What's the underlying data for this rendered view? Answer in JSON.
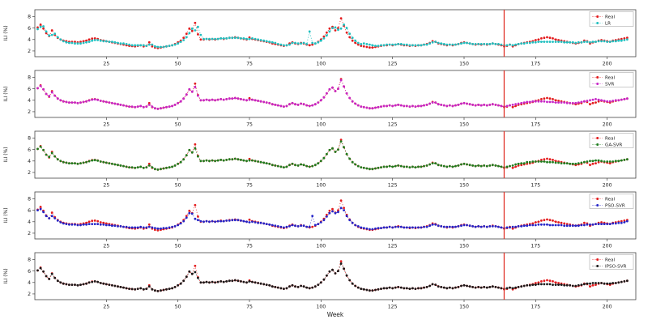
{
  "chart_data": {
    "type": "line",
    "title": "",
    "xlabel": "Week",
    "ylabel": "ILI (%)",
    "x_ticks": [
      25,
      50,
      75,
      100,
      125,
      150,
      175,
      200
    ],
    "y_ticks": [
      2,
      4,
      6,
      8
    ],
    "xlim": [
      0,
      210
    ],
    "ylim": [
      1.0,
      9.2
    ],
    "grid": false,
    "legend_position": "upper right",
    "split_week": 164,
    "marker": "dot",
    "linestyle": "dotted",
    "colors": {
      "Real": "#e31a1c",
      "LR": "#1fbfbf",
      "SVR": "#c625c6",
      "GA-SVR": "#1e7d1e",
      "PSO-SVR": "#2424c8",
      "IPSO-SVR": "#1a1a1a",
      "split_line": "#e0352b",
      "axis": "#444444"
    },
    "subplots": [
      {
        "model": "LR",
        "legend": [
          "Real",
          "LR"
        ]
      },
      {
        "model": "SVR",
        "legend": [
          "Real",
          "SVR"
        ]
      },
      {
        "model": "GA-SVR",
        "legend": [
          "Real",
          "GA-SVR"
        ]
      },
      {
        "model": "PSO-SVR",
        "legend": [
          "Real",
          "PSO-SVR"
        ]
      },
      {
        "model": "IPSO-SVR",
        "legend": [
          "Real",
          "IPSO-SVR"
        ]
      }
    ],
    "x_start_week": 1,
    "real": [
      6.1,
      6.6,
      5.9,
      5.1,
      4.6,
      5.6,
      4.8,
      4.3,
      4.0,
      3.8,
      3.7,
      3.6,
      3.6,
      3.6,
      3.5,
      3.6,
      3.7,
      3.8,
      4.0,
      4.15,
      4.2,
      4.1,
      3.9,
      3.8,
      3.7,
      3.6,
      3.5,
      3.4,
      3.3,
      3.2,
      3.1,
      3.0,
      2.9,
      2.85,
      2.8,
      2.9,
      3.0,
      2.8,
      2.9,
      3.5,
      2.8,
      2.6,
      2.5,
      2.6,
      2.7,
      2.8,
      2.9,
      3.0,
      3.2,
      3.5,
      3.8,
      4.3,
      5.0,
      5.9,
      5.5,
      6.9,
      4.9,
      4.0,
      4.0,
      4.1,
      4.0,
      4.1,
      4.0,
      4.1,
      4.2,
      4.1,
      4.2,
      4.3,
      4.3,
      4.4,
      4.3,
      4.2,
      4.1,
      4.0,
      4.35,
      4.1,
      4.0,
      3.9,
      3.8,
      3.7,
      3.6,
      3.5,
      3.3,
      3.2,
      3.1,
      3.0,
      2.9,
      3.0,
      3.3,
      3.5,
      3.3,
      3.2,
      3.4,
      3.3,
      3.1,
      3.0,
      3.1,
      3.3,
      3.6,
      4.0,
      4.5,
      5.2,
      5.9,
      6.2,
      5.6,
      6.0,
      7.7,
      6.4,
      5.2,
      4.4,
      3.8,
      3.4,
      3.1,
      2.9,
      2.8,
      2.7,
      2.6,
      2.6,
      2.7,
      2.8,
      2.9,
      3.0,
      3.0,
      3.1,
      3.0,
      3.1,
      3.2,
      3.1,
      3.0,
      3.0,
      2.9,
      3.0,
      2.9,
      3.0,
      3.0,
      3.1,
      3.2,
      3.4,
      3.7,
      3.6,
      3.3,
      3.2,
      3.1,
      3.0,
      3.1,
      3.0,
      3.1,
      3.2,
      3.4,
      3.5,
      3.4,
      3.3,
      3.2,
      3.1,
      3.2,
      3.1,
      3.2,
      3.1,
      3.2,
      3.3,
      3.2,
      3.1,
      3.0,
      2.8,
      2.9,
      3.1,
      2.8,
      3.0,
      3.2,
      3.3,
      3.4,
      3.5,
      3.6,
      3.7,
      3.9,
      4.0,
      4.2,
      4.3,
      4.4,
      4.3,
      4.2,
      4.0,
      3.9,
      3.8,
      3.7,
      3.6,
      3.5,
      3.4,
      3.3,
      3.4,
      3.5,
      3.8,
      3.7,
      3.3,
      3.5,
      3.6,
      3.8,
      3.9,
      3.8,
      3.7,
      3.6,
      3.8,
      3.9,
      4.0,
      4.1,
      4.2,
      4.3
    ],
    "models": {
      "LR": [
        5.8,
        6.2,
        6.3,
        5.4,
        4.7,
        4.8,
        5.0,
        4.4,
        4.0,
        3.7,
        3.5,
        3.4,
        3.4,
        3.3,
        3.3,
        3.3,
        3.4,
        3.5,
        3.6,
        3.8,
        3.9,
        3.9,
        3.8,
        3.7,
        3.7,
        3.6,
        3.6,
        3.5,
        3.4,
        3.3,
        3.3,
        3.2,
        3.1,
        3.0,
        3.0,
        3.0,
        3.0,
        3.0,
        2.9,
        3.1,
        3.1,
        2.8,
        2.7,
        2.7,
        2.7,
        2.8,
        2.9,
        3.0,
        3.1,
        3.3,
        3.6,
        3.9,
        4.4,
        5.1,
        5.9,
        5.6,
        6.2,
        4.8,
        4.1,
        4.1,
        4.1,
        4.1,
        4.1,
        4.1,
        4.2,
        4.2,
        4.2,
        4.3,
        4.3,
        4.3,
        4.3,
        4.2,
        4.2,
        4.1,
        4.1,
        4.2,
        4.1,
        4.0,
        3.9,
        3.8,
        3.7,
        3.6,
        3.5,
        3.4,
        3.2,
        3.1,
        3.0,
        3.0,
        3.1,
        3.4,
        3.4,
        3.3,
        3.3,
        3.4,
        3.2,
        5.4,
        3.4,
        3.3,
        3.5,
        3.8,
        4.2,
        4.7,
        5.4,
        6.0,
        6.1,
        5.7,
        5.9,
        6.6,
        6.0,
        5.0,
        4.3,
        3.8,
        3.4,
        3.2,
        3.3,
        3.2,
        3.1,
        3.0,
        2.9,
        2.9,
        3.0,
        3.0,
        3.1,
        3.1,
        3.1,
        3.1,
        3.2,
        3.2,
        3.1,
        3.1,
        3.0,
        3.0,
        3.0,
        3.0,
        3.0,
        3.1,
        3.1,
        3.3,
        3.5,
        3.6,
        3.4,
        3.3,
        3.2,
        3.1,
        3.1,
        3.1,
        3.1,
        3.2,
        3.3,
        3.4,
        3.4,
        3.3,
        3.2,
        3.2,
        3.2,
        3.2,
        3.2,
        3.2,
        3.2,
        3.3,
        3.2,
        3.2,
        3.1,
        3.0,
        3.0,
        3.1,
        3.0,
        3.1,
        3.2,
        3.3,
        3.3,
        3.4,
        3.4,
        3.5,
        3.5,
        3.6,
        3.6,
        3.6,
        3.6,
        3.6,
        3.6,
        3.6,
        3.6,
        3.6,
        3.5,
        3.5,
        3.5,
        3.5,
        3.4,
        3.5,
        3.5,
        3.6,
        3.6,
        3.5,
        3.6,
        3.6,
        3.7,
        3.7,
        3.7,
        3.6,
        3.6,
        3.7,
        3.7,
        3.8,
        3.8,
        3.9,
        4.0
      ],
      "SVR": [
        6.1,
        6.5,
        5.9,
        5.1,
        4.7,
        5.4,
        4.8,
        4.3,
        4.0,
        3.8,
        3.7,
        3.6,
        3.6,
        3.6,
        3.5,
        3.6,
        3.7,
        3.8,
        3.95,
        4.1,
        4.15,
        4.05,
        3.9,
        3.8,
        3.7,
        3.6,
        3.5,
        3.4,
        3.3,
        3.2,
        3.1,
        3.0,
        2.9,
        2.9,
        2.8,
        2.9,
        3.0,
        2.8,
        2.9,
        3.2,
        2.9,
        2.6,
        2.5,
        2.6,
        2.7,
        2.8,
        2.9,
        3.0,
        3.2,
        3.5,
        3.8,
        4.3,
        5.0,
        5.9,
        5.5,
        6.3,
        4.8,
        4.0,
        4.0,
        4.1,
        4.0,
        4.1,
        4.0,
        4.1,
        4.2,
        4.1,
        4.2,
        4.3,
        4.3,
        4.4,
        4.3,
        4.2,
        4.1,
        4.0,
        4.1,
        4.1,
        4.0,
        3.9,
        3.8,
        3.7,
        3.6,
        3.5,
        3.3,
        3.2,
        3.1,
        3.0,
        2.9,
        3.0,
        3.3,
        3.5,
        3.3,
        3.2,
        3.4,
        3.3,
        3.1,
        3.0,
        3.1,
        3.3,
        3.6,
        4.0,
        4.5,
        5.2,
        5.9,
        6.2,
        5.6,
        6.0,
        7.5,
        6.4,
        5.2,
        4.4,
        3.8,
        3.4,
        3.1,
        2.9,
        2.8,
        2.7,
        2.6,
        2.6,
        2.7,
        2.8,
        2.9,
        3.0,
        3.0,
        3.1,
        3.0,
        3.1,
        3.2,
        3.1,
        3.0,
        3.0,
        2.9,
        3.0,
        2.9,
        3.0,
        3.0,
        3.1,
        3.2,
        3.4,
        3.6,
        3.6,
        3.3,
        3.2,
        3.1,
        3.0,
        3.1,
        3.0,
        3.1,
        3.2,
        3.4,
        3.5,
        3.4,
        3.3,
        3.2,
        3.1,
        3.2,
        3.1,
        3.2,
        3.1,
        3.2,
        3.3,
        3.2,
        3.1,
        3.0,
        2.9,
        3.0,
        3.1,
        3.2,
        3.3,
        3.4,
        3.5,
        3.6,
        3.7,
        3.7,
        3.8,
        3.8,
        3.8,
        3.8,
        3.8,
        3.7,
        3.7,
        3.7,
        3.6,
        3.6,
        3.6,
        3.6,
        3.5,
        3.5,
        3.5,
        3.5,
        3.6,
        3.7,
        3.8,
        3.9,
        4.0,
        4.1,
        4.2,
        4.1,
        4.0,
        3.9,
        3.8,
        3.8,
        3.9,
        4.0,
        4.0,
        4.1,
        4.2,
        4.3
      ],
      "GA-SVR": [
        6.1,
        6.5,
        5.9,
        5.1,
        4.7,
        5.4,
        4.8,
        4.3,
        4.0,
        3.8,
        3.7,
        3.6,
        3.6,
        3.6,
        3.5,
        3.6,
        3.7,
        3.8,
        3.95,
        4.1,
        4.15,
        4.05,
        3.9,
        3.8,
        3.7,
        3.6,
        3.5,
        3.4,
        3.3,
        3.2,
        3.1,
        3.0,
        2.9,
        2.9,
        2.8,
        2.9,
        3.0,
        2.8,
        2.9,
        3.2,
        2.9,
        2.6,
        2.5,
        2.6,
        2.7,
        2.8,
        2.9,
        3.0,
        3.2,
        3.5,
        3.8,
        4.3,
        5.0,
        5.9,
        5.5,
        6.2,
        4.8,
        4.0,
        4.0,
        4.1,
        4.0,
        4.1,
        4.0,
        4.1,
        4.2,
        4.1,
        4.2,
        4.3,
        4.3,
        4.4,
        4.3,
        4.2,
        4.1,
        4.0,
        4.1,
        4.1,
        4.0,
        3.9,
        3.8,
        3.7,
        3.6,
        3.5,
        3.3,
        3.2,
        3.1,
        3.0,
        2.9,
        3.0,
        3.3,
        3.5,
        3.3,
        3.2,
        3.4,
        3.3,
        3.1,
        3.0,
        3.1,
        3.3,
        3.6,
        4.0,
        4.5,
        5.2,
        5.9,
        6.2,
        5.6,
        6.0,
        7.4,
        6.4,
        5.2,
        4.4,
        3.8,
        3.4,
        3.1,
        2.9,
        2.8,
        2.7,
        2.6,
        2.6,
        2.7,
        2.8,
        2.9,
        3.0,
        3.0,
        3.1,
        3.0,
        3.1,
        3.2,
        3.1,
        3.0,
        3.0,
        2.9,
        3.0,
        2.9,
        3.0,
        3.0,
        3.1,
        3.2,
        3.4,
        3.6,
        3.6,
        3.3,
        3.2,
        3.1,
        3.0,
        3.1,
        3.0,
        3.1,
        3.2,
        3.4,
        3.5,
        3.4,
        3.3,
        3.2,
        3.1,
        3.2,
        3.1,
        3.2,
        3.1,
        3.2,
        3.3,
        3.2,
        3.1,
        3.0,
        2.9,
        3.0,
        3.1,
        3.2,
        3.4,
        3.5,
        3.6,
        3.6,
        3.8,
        3.8,
        3.9,
        3.9,
        3.9,
        3.9,
        3.9,
        3.8,
        3.8,
        3.8,
        3.7,
        3.7,
        3.6,
        3.6,
        3.6,
        3.5,
        3.5,
        3.5,
        3.6,
        3.7,
        3.8,
        3.9,
        4.0,
        4.0,
        4.1,
        4.1,
        4.0,
        3.9,
        3.9,
        3.9,
        3.9,
        4.0,
        4.0,
        4.1,
        4.2,
        4.3
      ],
      "PSO-SVR": [
        6.0,
        6.2,
        5.7,
        5.0,
        4.6,
        5.0,
        4.6,
        4.2,
        3.9,
        3.7,
        3.6,
        3.5,
        3.5,
        3.5,
        3.4,
        3.4,
        3.5,
        3.5,
        3.6,
        3.6,
        3.6,
        3.6,
        3.5,
        3.5,
        3.4,
        3.4,
        3.3,
        3.3,
        3.2,
        3.2,
        3.1,
        3.1,
        3.0,
        3.0,
        3.0,
        3.0,
        3.1,
        3.0,
        3.0,
        3.1,
        3.0,
        2.9,
        2.8,
        2.8,
        2.9,
        2.9,
        3.0,
        3.1,
        3.2,
        3.4,
        3.7,
        4.1,
        4.7,
        5.5,
        5.4,
        4.5,
        4.3,
        4.1,
        4.0,
        4.1,
        4.0,
        4.1,
        4.0,
        4.1,
        4.1,
        4.1,
        4.2,
        4.2,
        4.3,
        4.3,
        4.3,
        4.2,
        4.1,
        4.0,
        3.9,
        4.0,
        3.9,
        3.8,
        3.8,
        3.7,
        3.6,
        3.5,
        3.4,
        3.3,
        3.2,
        3.1,
        3.0,
        3.1,
        3.2,
        3.4,
        3.3,
        3.2,
        3.3,
        3.3,
        3.1,
        3.1,
        5.0,
        3.4,
        3.6,
        3.9,
        4.3,
        4.9,
        5.5,
        5.8,
        5.5,
        5.7,
        6.4,
        6.0,
        5.0,
        4.3,
        3.8,
        3.4,
        3.2,
        3.0,
        2.9,
        2.8,
        2.7,
        2.7,
        2.8,
        2.9,
        2.9,
        3.0,
        3.0,
        3.1,
        3.0,
        3.1,
        3.1,
        3.1,
        3.0,
        3.0,
        3.0,
        3.0,
        3.0,
        3.0,
        3.0,
        3.1,
        3.1,
        3.3,
        3.5,
        3.5,
        3.3,
        3.2,
        3.1,
        3.1,
        3.1,
        3.1,
        3.1,
        3.2,
        3.3,
        3.4,
        3.4,
        3.3,
        3.2,
        3.1,
        3.2,
        3.1,
        3.2,
        3.1,
        3.2,
        3.2,
        3.2,
        3.1,
        3.0,
        2.9,
        3.0,
        3.0,
        3.1,
        3.1,
        3.2,
        3.2,
        3.3,
        3.3,
        3.4,
        3.4,
        3.4,
        3.5,
        3.5,
        3.5,
        3.5,
        3.4,
        3.4,
        3.4,
        3.4,
        3.4,
        3.3,
        3.3,
        3.3,
        3.3,
        3.3,
        3.3,
        3.4,
        3.4,
        3.5,
        3.5,
        3.5,
        3.6,
        3.6,
        3.6,
        3.6,
        3.6,
        3.6,
        3.7,
        3.7,
        3.8,
        3.8,
        3.9,
        4.1
      ],
      "IPSO-SVR": [
        6.1,
        6.5,
        5.9,
        5.1,
        4.6,
        5.5,
        4.8,
        4.3,
        4.0,
        3.8,
        3.7,
        3.6,
        3.6,
        3.6,
        3.5,
        3.6,
        3.7,
        3.8,
        4.0,
        4.1,
        4.2,
        4.1,
        3.9,
        3.8,
        3.7,
        3.6,
        3.5,
        3.4,
        3.3,
        3.2,
        3.1,
        3.0,
        2.9,
        2.85,
        2.8,
        2.9,
        3.0,
        2.8,
        2.9,
        3.3,
        2.8,
        2.6,
        2.5,
        2.6,
        2.7,
        2.8,
        2.9,
        3.0,
        3.2,
        3.5,
        3.8,
        4.3,
        5.0,
        5.9,
        5.5,
        5.8,
        4.8,
        4.0,
        4.0,
        4.1,
        4.0,
        4.1,
        4.0,
        4.1,
        4.2,
        4.1,
        4.2,
        4.3,
        4.3,
        4.4,
        4.3,
        4.2,
        4.1,
        4.0,
        4.2,
        4.1,
        4.0,
        3.9,
        3.8,
        3.7,
        3.6,
        3.5,
        3.3,
        3.2,
        3.1,
        3.0,
        2.9,
        3.0,
        3.3,
        3.5,
        3.3,
        3.2,
        3.4,
        3.3,
        3.1,
        3.0,
        3.1,
        3.3,
        3.6,
        4.0,
        4.5,
        5.2,
        5.9,
        6.2,
        5.6,
        6.0,
        7.3,
        6.4,
        5.2,
        4.4,
        3.8,
        3.4,
        3.1,
        2.9,
        2.8,
        2.7,
        2.6,
        2.6,
        2.7,
        2.8,
        2.9,
        3.0,
        3.0,
        3.1,
        3.0,
        3.1,
        3.2,
        3.1,
        3.0,
        3.0,
        2.9,
        3.0,
        2.9,
        3.0,
        3.0,
        3.1,
        3.2,
        3.4,
        3.7,
        3.6,
        3.3,
        3.2,
        3.1,
        3.0,
        3.1,
        3.0,
        3.1,
        3.2,
        3.4,
        3.5,
        3.4,
        3.3,
        3.2,
        3.1,
        3.2,
        3.1,
        3.2,
        3.1,
        3.2,
        3.3,
        3.2,
        3.1,
        3.0,
        2.9,
        3.0,
        3.1,
        3.0,
        3.1,
        3.2,
        3.3,
        3.4,
        3.5,
        3.5,
        3.6,
        3.6,
        3.7,
        3.7,
        3.7,
        3.7,
        3.7,
        3.6,
        3.6,
        3.6,
        3.6,
        3.5,
        3.5,
        3.5,
        3.4,
        3.4,
        3.5,
        3.6,
        3.7,
        3.8,
        3.8,
        3.9,
        3.9,
        3.9,
        3.9,
        3.8,
        3.8,
        3.8,
        3.9,
        3.9,
        4.0,
        4.1,
        4.2,
        4.3
      ]
    }
  }
}
